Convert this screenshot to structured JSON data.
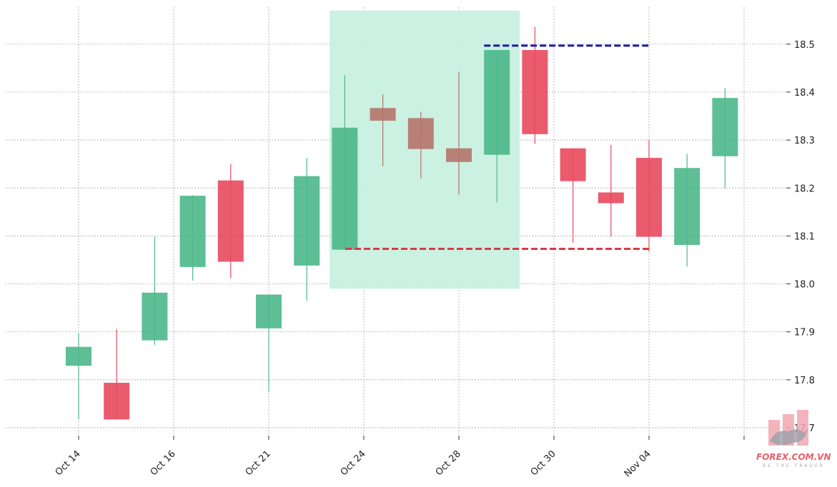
{
  "chart_data": {
    "type": "candlestick",
    "title": "",
    "xlabel": "",
    "ylabel": "",
    "ylim": [
      17.68,
      18.57
    ],
    "y_ticks": [
      "17.7",
      "17.8",
      "17.9",
      "18.0",
      "18.1",
      "18.2",
      "18.3",
      "18.4",
      "18.5"
    ],
    "x_tick_labels": [
      "Oct 14",
      "Oct 16",
      "Oct 21",
      "Oct 24",
      "Oct 28",
      "Oct 30",
      "Nov 04",
      ""
    ],
    "x_tick_index": [
      0,
      2.5,
      5,
      7.5,
      10,
      12.5,
      15,
      17.5
    ],
    "grid": true,
    "colors": {
      "up": "#4db88a",
      "down": "#e84a5f",
      "neutral": "#b5756c",
      "zone_fill": "#c8f0e0",
      "resistance_line": "#1a1aa8",
      "support_line": "#d83a4a"
    },
    "candles": [
      {
        "open": 17.83,
        "high": 17.897,
        "low": 17.718,
        "close": 17.868
      },
      {
        "open": 17.793,
        "high": 17.906,
        "low": 17.718,
        "close": 17.718
      },
      {
        "open": 17.883,
        "high": 18.098,
        "low": 17.873,
        "close": 17.981
      },
      {
        "open": 18.036,
        "high": 18.185,
        "low": 18.007,
        "close": 18.183
      },
      {
        "open": 18.215,
        "high": 18.25,
        "low": 18.012,
        "close": 18.047
      },
      {
        "open": 17.908,
        "high": 17.977,
        "low": 17.775,
        "close": 17.977
      },
      {
        "open": 18.039,
        "high": 18.263,
        "low": 17.965,
        "close": 18.224
      },
      {
        "open": 18.072,
        "high": 18.435,
        "low": 18.072,
        "close": 18.325
      },
      {
        "open": 18.366,
        "high": 18.395,
        "low": 18.245,
        "close": 18.341,
        "highlight": "neutral"
      },
      {
        "open": 18.345,
        "high": 18.359,
        "low": 18.22,
        "close": 18.282,
        "highlight": "neutral"
      },
      {
        "open": 18.282,
        "high": 18.442,
        "low": 18.186,
        "close": 18.255,
        "highlight": "neutral"
      },
      {
        "open": 18.27,
        "high": 18.487,
        "low": 18.17,
        "close": 18.487
      },
      {
        "open": 18.487,
        "high": 18.536,
        "low": 18.292,
        "close": 18.313
      },
      {
        "open": 18.282,
        "high": 18.282,
        "low": 18.086,
        "close": 18.215
      },
      {
        "open": 18.19,
        "high": 18.29,
        "low": 18.099,
        "close": 18.169
      },
      {
        "open": 18.262,
        "high": 18.3,
        "low": 18.067,
        "close": 18.099
      },
      {
        "open": 18.082,
        "high": 18.271,
        "low": 18.036,
        "close": 18.241
      },
      {
        "open": 18.267,
        "high": 18.408,
        "low": 18.199,
        "close": 18.387
      }
    ],
    "zone": {
      "start_index": 6.6,
      "end_index": 11.6,
      "low": 17.99,
      "high": 18.57
    },
    "resistance": {
      "value": 18.497,
      "start_index": 11.0,
      "end_index": 15.0
    },
    "support": {
      "value": 18.073,
      "start_index": 7.2,
      "end_index": 15.0
    }
  },
  "watermark": {
    "brand": "FOREX.COM.VN",
    "tagline": "BE THE TRADER",
    "icon": "bull-logo-icon"
  }
}
